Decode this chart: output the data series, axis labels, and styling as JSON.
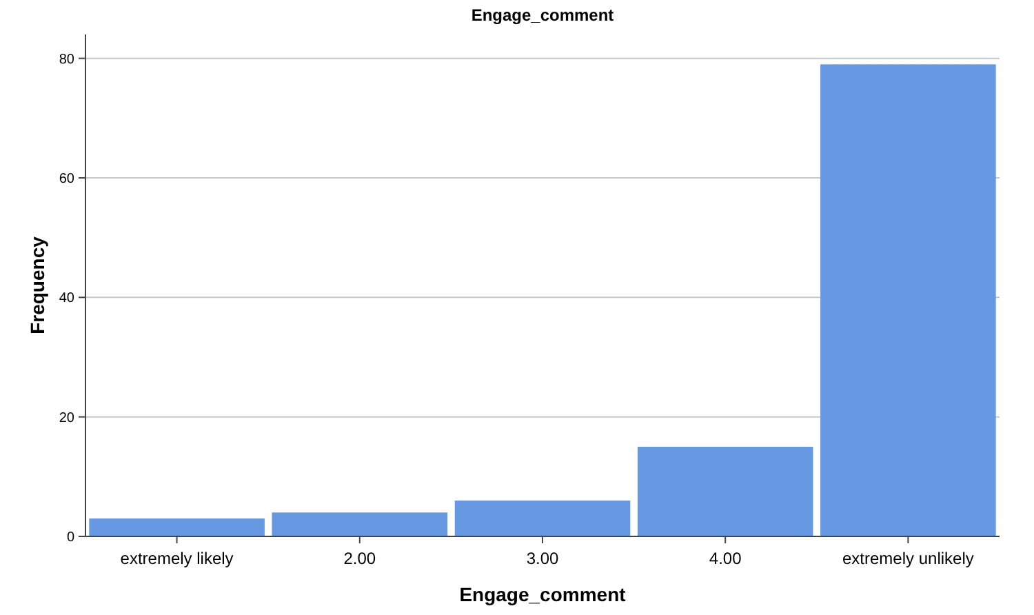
{
  "chart_data": {
    "type": "bar",
    "title": "Engage_comment",
    "xlabel": "Engage_comment",
    "ylabel": "Frequency",
    "categories": [
      "extremely likely",
      "2.00",
      "3.00",
      "4.00",
      "extremely unlikely"
    ],
    "values": [
      3,
      4,
      6,
      15,
      79
    ],
    "color": "#6699e1",
    "ylim": [
      0,
      84
    ],
    "yticks": [
      0,
      20,
      40,
      60,
      80
    ],
    "grid": "y"
  }
}
